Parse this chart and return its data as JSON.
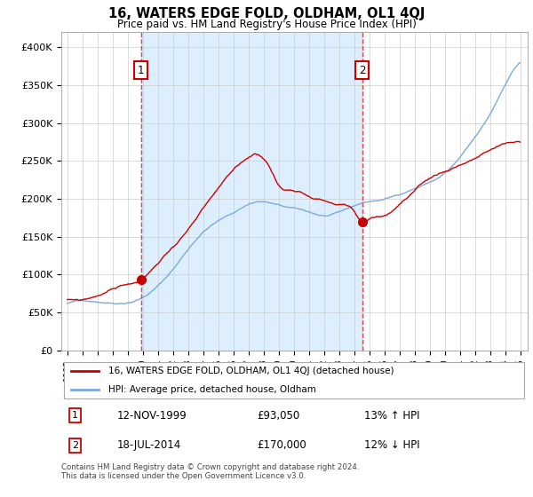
{
  "title": "16, WATERS EDGE FOLD, OLDHAM, OL1 4QJ",
  "subtitle": "Price paid vs. HM Land Registry's House Price Index (HPI)",
  "ylim": [
    0,
    420000
  ],
  "yticks": [
    0,
    50000,
    100000,
    150000,
    200000,
    250000,
    300000,
    350000,
    400000
  ],
  "ytick_labels": [
    "£0",
    "£50K",
    "£100K",
    "£150K",
    "£200K",
    "£250K",
    "£300K",
    "£350K",
    "£400K"
  ],
  "sale1_x": 1999.87,
  "sale1_price": 93050,
  "sale2_x": 2014.54,
  "sale2_price": 170000,
  "sale_color": "#cc0000",
  "hpi_color": "#7aaadd",
  "vline_color": "#dd4444",
  "shade_color": "#ddeeff",
  "legend_label1": "16, WATERS EDGE FOLD, OLDHAM, OL1 4QJ (detached house)",
  "legend_label2": "HPI: Average price, detached house, Oldham",
  "annotation1_date": "12-NOV-1999",
  "annotation1_price": "£93,050",
  "annotation1_hpi": "13% ↑ HPI",
  "annotation2_date": "18-JUL-2014",
  "annotation2_price": "£170,000",
  "annotation2_hpi": "12% ↓ HPI",
  "footer": "Contains HM Land Registry data © Crown copyright and database right 2024.\nThis data is licensed under the Open Government Licence v3.0.",
  "background_color": "#ffffff",
  "grid_color": "#cccccc"
}
